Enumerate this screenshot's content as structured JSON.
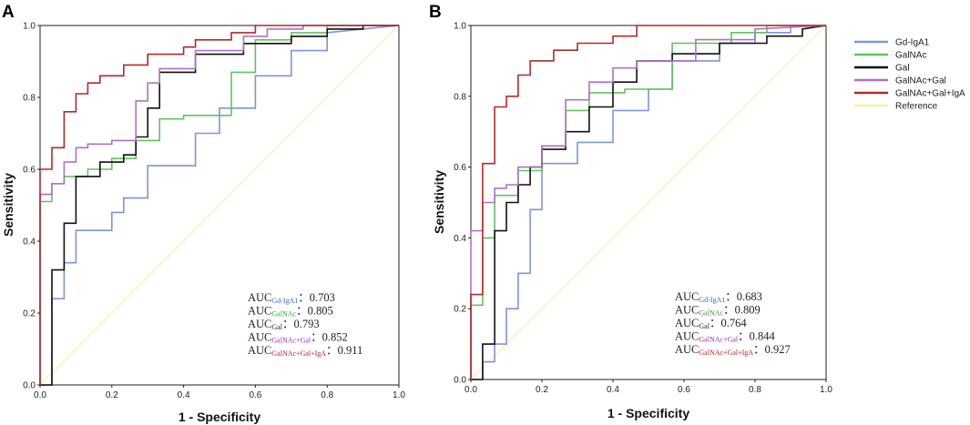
{
  "chart_data": [
    {
      "type": "line",
      "panel": "A",
      "xlabel": "1 - Specificity",
      "ylabel": "Sensitivity",
      "xlim": [
        0,
        1
      ],
      "ylim": [
        0,
        1
      ],
      "ticks": [
        "0.0",
        "0.2",
        "0.4",
        "0.6",
        "0.8",
        "1.0"
      ],
      "series": [
        {
          "name": "Gd-IgA1",
          "color": "#7f95d6",
          "x": [
            0,
            0.033,
            0.033,
            0.067,
            0.067,
            0.1,
            0.1,
            0.2,
            0.2,
            0.233,
            0.233,
            0.3,
            0.3,
            0.433,
            0.433,
            0.5,
            0.5,
            0.6,
            0.6,
            0.7,
            0.7,
            0.8,
            0.8,
            1.0
          ],
          "y": [
            0,
            0,
            0.24,
            0.24,
            0.34,
            0.34,
            0.43,
            0.43,
            0.48,
            0.48,
            0.52,
            0.52,
            0.61,
            0.61,
            0.7,
            0.7,
            0.77,
            0.77,
            0.86,
            0.86,
            0.93,
            0.93,
            0.98,
            1.0
          ]
        },
        {
          "name": "GalNAc",
          "color": "#5fc45f",
          "x": [
            0,
            0,
            0.033,
            0.033,
            0.067,
            0.067,
            0.133,
            0.133,
            0.2,
            0.2,
            0.267,
            0.267,
            0.333,
            0.333,
            0.4,
            0.4,
            0.533,
            0.533,
            0.6,
            0.6,
            0.7,
            0.7,
            0.8,
            0.8,
            1.0
          ],
          "y": [
            0,
            0.51,
            0.51,
            0.56,
            0.56,
            0.58,
            0.58,
            0.6,
            0.6,
            0.63,
            0.63,
            0.68,
            0.68,
            0.74,
            0.74,
            0.75,
            0.75,
            0.87,
            0.87,
            0.96,
            0.96,
            0.98,
            0.98,
            1.0,
            1.0
          ]
        },
        {
          "name": "Gal",
          "color": "#111111",
          "x": [
            0,
            0.033,
            0.033,
            0.067,
            0.067,
            0.1,
            0.1,
            0.167,
            0.167,
            0.233,
            0.233,
            0.267,
            0.267,
            0.3,
            0.3,
            0.333,
            0.333,
            0.433,
            0.433,
            0.567,
            0.567,
            0.7,
            0.7,
            0.8,
            0.8,
            0.9,
            0.9,
            1.0
          ],
          "y": [
            0,
            0,
            0.32,
            0.32,
            0.45,
            0.45,
            0.58,
            0.58,
            0.62,
            0.62,
            0.64,
            0.64,
            0.69,
            0.69,
            0.77,
            0.77,
            0.87,
            0.87,
            0.92,
            0.92,
            0.95,
            0.95,
            0.97,
            0.97,
            0.99,
            0.99,
            1.0,
            1.0
          ]
        },
        {
          "name": "GalNAc+Gal",
          "color": "#b070c6",
          "x": [
            0,
            0,
            0.033,
            0.033,
            0.067,
            0.067,
            0.1,
            0.1,
            0.133,
            0.133,
            0.2,
            0.2,
            0.267,
            0.267,
            0.3,
            0.3,
            0.333,
            0.333,
            0.433,
            0.433,
            0.567,
            0.567,
            0.633,
            0.633,
            0.733,
            0.733,
            1.0
          ],
          "y": [
            0,
            0.53,
            0.53,
            0.56,
            0.56,
            0.62,
            0.62,
            0.66,
            0.66,
            0.67,
            0.67,
            0.68,
            0.68,
            0.79,
            0.79,
            0.84,
            0.84,
            0.88,
            0.88,
            0.93,
            0.93,
            0.97,
            0.97,
            0.99,
            0.99,
            1.0,
            1.0
          ]
        },
        {
          "name": "GalNAc+Gal+IgA",
          "color": "#b22a2a",
          "x": [
            0,
            0,
            0.033,
            0.033,
            0.067,
            0.067,
            0.1,
            0.1,
            0.133,
            0.133,
            0.167,
            0.167,
            0.233,
            0.233,
            0.3,
            0.3,
            0.4,
            0.4,
            0.433,
            0.433,
            0.533,
            0.533,
            0.6,
            0.6,
            1.0
          ],
          "y": [
            0,
            0.6,
            0.6,
            0.66,
            0.66,
            0.76,
            0.76,
            0.81,
            0.81,
            0.84,
            0.84,
            0.86,
            0.86,
            0.89,
            0.89,
            0.92,
            0.92,
            0.94,
            0.94,
            0.96,
            0.96,
            0.98,
            0.98,
            1.0,
            1.0
          ]
        },
        {
          "name": "Reference",
          "color": "#f2f29c",
          "x": [
            0,
            1
          ],
          "y": [
            0,
            1
          ]
        }
      ],
      "auc": [
        {
          "prefix": "AUC",
          "sub": "Gd-IgA1",
          "value": "：0.703",
          "color": "#3a64c8"
        },
        {
          "prefix": "AUC",
          "sub": "GalNAc",
          "value": "：0.805",
          "color": "#2ea02e"
        },
        {
          "prefix": "AUC",
          "sub": "Gal",
          "value": "：0.793",
          "color": "#222222"
        },
        {
          "prefix": "AUC",
          "sub": "GalNAc+Gal",
          "value": "：0.852",
          "color": "#9a2fb4"
        },
        {
          "prefix": "AUC",
          "sub": "GalNAc+Gal+IgA",
          "value": "：0.911",
          "color": "#c42222"
        }
      ]
    },
    {
      "type": "line",
      "panel": "B",
      "xlabel": "1 - Specificity",
      "ylabel": "Sensitivity",
      "xlim": [
        0,
        1
      ],
      "ylim": [
        0,
        1
      ],
      "ticks": [
        "0.0",
        "0.2",
        "0.4",
        "0.6",
        "0.8",
        "1.0"
      ],
      "series": [
        {
          "name": "Gd-IgA1",
          "color": "#7f95d6",
          "x": [
            0,
            0.033,
            0.033,
            0.067,
            0.067,
            0.1,
            0.1,
            0.133,
            0.133,
            0.167,
            0.167,
            0.2,
            0.2,
            0.3,
            0.3,
            0.4,
            0.4,
            0.5,
            0.5,
            0.567,
            0.567,
            0.7,
            0.7,
            0.8,
            0.8,
            0.9,
            0.9,
            1.0
          ],
          "y": [
            0,
            0,
            0.05,
            0.05,
            0.1,
            0.1,
            0.2,
            0.2,
            0.3,
            0.3,
            0.48,
            0.48,
            0.61,
            0.61,
            0.67,
            0.67,
            0.76,
            0.76,
            0.82,
            0.82,
            0.9,
            0.9,
            0.95,
            0.95,
            0.98,
            0.98,
            1.0,
            1.0
          ]
        },
        {
          "name": "GalNAc",
          "color": "#5fc45f",
          "x": [
            0,
            0,
            0.033,
            0.033,
            0.067,
            0.067,
            0.133,
            0.133,
            0.2,
            0.2,
            0.267,
            0.267,
            0.333,
            0.333,
            0.433,
            0.433,
            0.567,
            0.567,
            0.733,
            0.733,
            0.833,
            0.833,
            1.0
          ],
          "y": [
            0,
            0.21,
            0.21,
            0.4,
            0.4,
            0.52,
            0.52,
            0.59,
            0.59,
            0.66,
            0.66,
            0.76,
            0.76,
            0.81,
            0.81,
            0.82,
            0.82,
            0.95,
            0.95,
            0.98,
            0.98,
            1.0,
            1.0
          ]
        },
        {
          "name": "Gal",
          "color": "#111111",
          "x": [
            0,
            0.033,
            0.033,
            0.067,
            0.067,
            0.1,
            0.1,
            0.133,
            0.133,
            0.167,
            0.167,
            0.2,
            0.2,
            0.267,
            0.267,
            0.333,
            0.333,
            0.4,
            0.4,
            0.467,
            0.467,
            0.567,
            0.567,
            0.7,
            0.7,
            0.833,
            0.833,
            0.933,
            0.933,
            1.0
          ],
          "y": [
            0,
            0,
            0.1,
            0.1,
            0.42,
            0.42,
            0.5,
            0.5,
            0.55,
            0.55,
            0.6,
            0.6,
            0.65,
            0.65,
            0.7,
            0.7,
            0.77,
            0.77,
            0.84,
            0.84,
            0.9,
            0.9,
            0.92,
            0.92,
            0.95,
            0.95,
            0.97,
            0.97,
            0.99,
            1.0
          ]
        },
        {
          "name": "GalNAc+Gal",
          "color": "#b070c6",
          "x": [
            0,
            0,
            0.033,
            0.033,
            0.067,
            0.067,
            0.1,
            0.1,
            0.133,
            0.133,
            0.2,
            0.2,
            0.267,
            0.267,
            0.333,
            0.333,
            0.4,
            0.4,
            0.467,
            0.467,
            0.633,
            0.633,
            0.8,
            0.8,
            1.0
          ],
          "y": [
            0,
            0.42,
            0.42,
            0.5,
            0.5,
            0.54,
            0.54,
            0.55,
            0.55,
            0.6,
            0.6,
            0.66,
            0.66,
            0.79,
            0.79,
            0.84,
            0.84,
            0.88,
            0.88,
            0.9,
            0.9,
            0.96,
            0.96,
            0.99,
            1.0
          ]
        },
        {
          "name": "GalNAc+Gal+IgA",
          "color": "#b22a2a",
          "x": [
            0,
            0,
            0.033,
            0.033,
            0.067,
            0.067,
            0.1,
            0.1,
            0.133,
            0.133,
            0.167,
            0.167,
            0.233,
            0.233,
            0.3,
            0.3,
            0.4,
            0.4,
            0.467,
            0.467,
            1.0
          ],
          "y": [
            0,
            0.24,
            0.24,
            0.61,
            0.61,
            0.77,
            0.77,
            0.8,
            0.8,
            0.86,
            0.86,
            0.9,
            0.9,
            0.93,
            0.93,
            0.95,
            0.95,
            0.97,
            0.97,
            1.0,
            1.0
          ]
        },
        {
          "name": "Reference",
          "color": "#f2f29c",
          "x": [
            0,
            1
          ],
          "y": [
            0,
            1
          ]
        }
      ],
      "auc": [
        {
          "prefix": "AUC",
          "sub": "Gd-IgA1",
          "value": "：0.683",
          "color": "#3a64c8"
        },
        {
          "prefix": "AUC",
          "sub": "GalNAc",
          "value": "：0.809",
          "color": "#2ea02e"
        },
        {
          "prefix": "AUC",
          "sub": "Gal",
          "value": "：0.764",
          "color": "#222222"
        },
        {
          "prefix": "AUC",
          "sub": "GalNAc+Gal",
          "value": "：0.844",
          "color": "#9a2fb4"
        },
        {
          "prefix": "AUC",
          "sub": "GalNAc+Gal+IgA",
          "value": "：0.927",
          "color": "#c42222"
        }
      ]
    }
  ],
  "legend": {
    "placement": "right",
    "items": [
      "Gd-IgA1",
      "GalNAc",
      "Gal",
      "GalNAc+Gal",
      "GalNAc+Gal+IgA",
      "Reference"
    ]
  }
}
